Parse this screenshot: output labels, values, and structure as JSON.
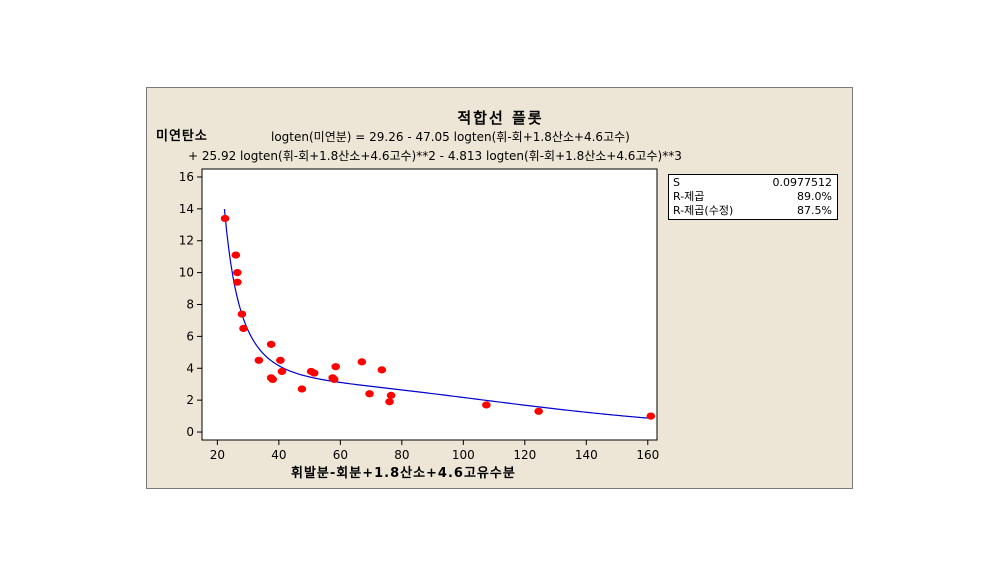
{
  "title": "적합선 플롯",
  "equation": {
    "line1": "logten(미연분) =  29.26 - 47.05 logten(휘-회+1.8산소+4.6고수)",
    "line2": "+ 25.92 logten(휘-회+1.8산소+4.6고수)**2 - 4.813 logten(휘-회+1.8산소+4.6고수)**3"
  },
  "stats": [
    {
      "label": "S",
      "value": "0.0977512"
    },
    {
      "label": "R-제곱",
      "value": "89.0%"
    },
    {
      "label": "R-제곱(수정)",
      "value": "87.5%"
    }
  ],
  "colors": {
    "points": "#ff0000",
    "fit_line": "#0000cc",
    "frame_bg": "#ede6d6",
    "plot_bg": "#ffffff"
  },
  "chart_data": {
    "type": "scatter",
    "title": "적합선 플롯",
    "xlabel": "휘발분-회분+1.8산소+4.6고유수분",
    "ylabel": "미연탄소",
    "xlim": [
      15,
      163
    ],
    "ylim": [
      -0.5,
      16.5
    ],
    "xticks": [
      20,
      40,
      60,
      80,
      100,
      120,
      140,
      160
    ],
    "yticks": [
      0,
      2,
      4,
      6,
      8,
      10,
      12,
      14,
      16
    ],
    "grid": false,
    "points": [
      {
        "x": 22.5,
        "y": 13.4
      },
      {
        "x": 26.0,
        "y": 11.1
      },
      {
        "x": 26.5,
        "y": 10.0
      },
      {
        "x": 26.5,
        "y": 9.4
      },
      {
        "x": 28.0,
        "y": 7.4
      },
      {
        "x": 28.5,
        "y": 6.5
      },
      {
        "x": 33.5,
        "y": 4.5
      },
      {
        "x": 37.5,
        "y": 5.5
      },
      {
        "x": 37.5,
        "y": 3.4
      },
      {
        "x": 38.0,
        "y": 3.3
      },
      {
        "x": 40.5,
        "y": 4.5
      },
      {
        "x": 41.0,
        "y": 3.8
      },
      {
        "x": 47.5,
        "y": 2.7
      },
      {
        "x": 50.5,
        "y": 3.8
      },
      {
        "x": 51.5,
        "y": 3.7
      },
      {
        "x": 57.5,
        "y": 3.4
      },
      {
        "x": 58.0,
        "y": 3.3
      },
      {
        "x": 58.5,
        "y": 4.1
      },
      {
        "x": 67.0,
        "y": 4.4
      },
      {
        "x": 69.5,
        "y": 2.4
      },
      {
        "x": 73.5,
        "y": 3.9
      },
      {
        "x": 76.0,
        "y": 1.9
      },
      {
        "x": 76.5,
        "y": 2.3
      },
      {
        "x": 107.5,
        "y": 1.7
      },
      {
        "x": 124.5,
        "y": 1.3
      },
      {
        "x": 161.0,
        "y": 1.0
      }
    ],
    "fit": {
      "type": "cubic-log10",
      "coefficients": [
        29.26,
        -47.05,
        25.92,
        -4.813
      ],
      "x_range": [
        22.3,
        160
      ]
    }
  }
}
